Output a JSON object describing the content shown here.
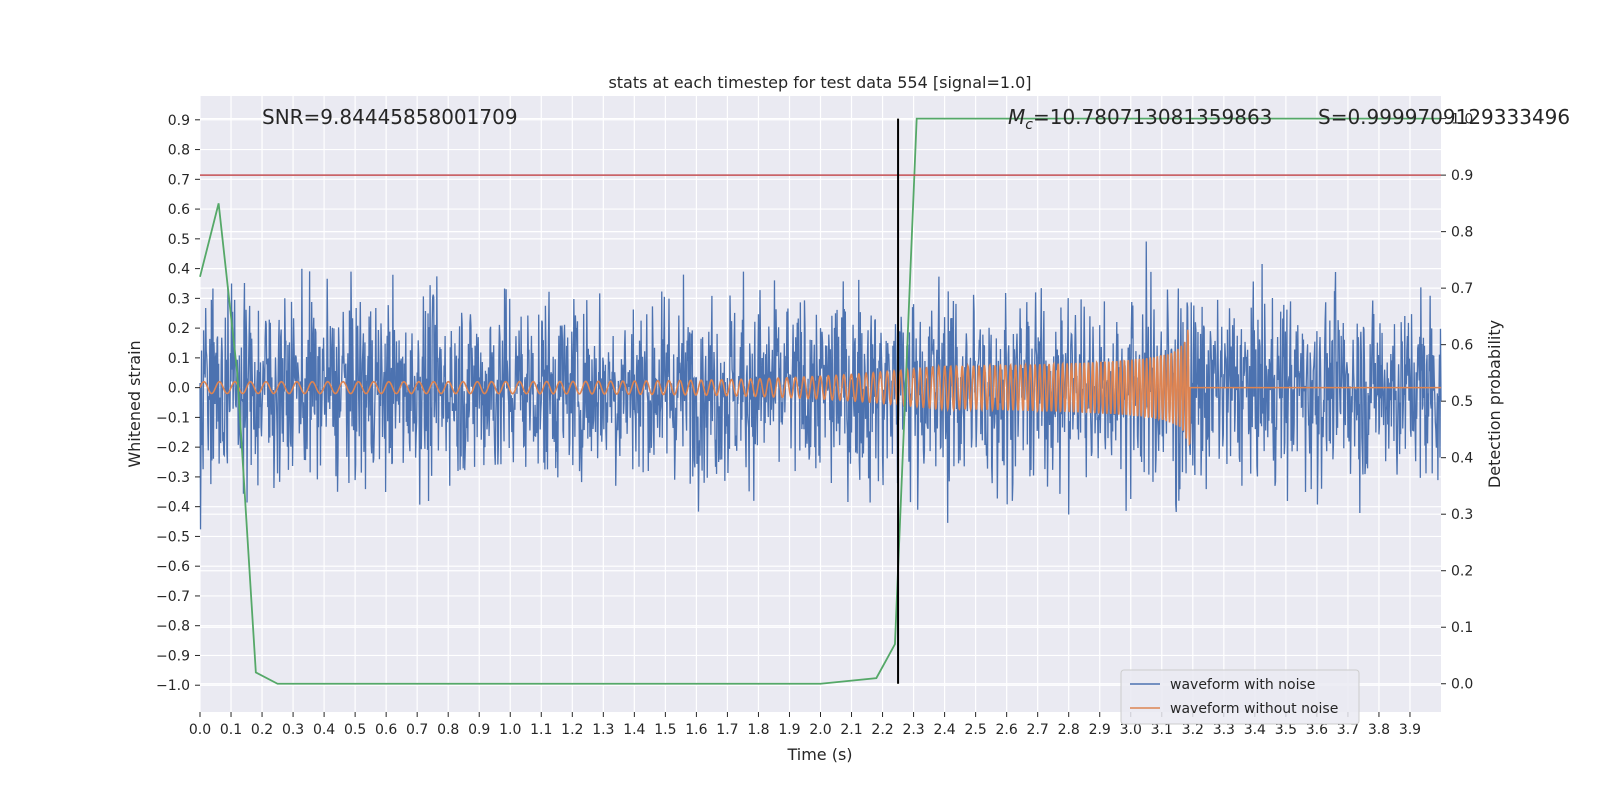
{
  "chart_data": {
    "type": "line",
    "title": "stats at each timestep for test data 554 [signal=1.0]",
    "xlabel": "Time (s)",
    "ylabel": "Whitened strain",
    "y2label": "Detection probability",
    "xlim": [
      0.0,
      4.0
    ],
    "ylim": [
      -1.09,
      0.98
    ],
    "y2lim": [
      -0.05,
      1.04
    ],
    "x_ticks": [
      0.0,
      0.1,
      0.2,
      0.3,
      0.4,
      0.5,
      0.6,
      0.7,
      0.8,
      0.9,
      1.0,
      1.1,
      1.2,
      1.3,
      1.4,
      1.5,
      1.6,
      1.7,
      1.8,
      1.9,
      2.0,
      2.1,
      2.2,
      2.3,
      2.4,
      2.5,
      2.6,
      2.7,
      2.8,
      2.9,
      3.0,
      3.1,
      3.2,
      3.3,
      3.4,
      3.5,
      3.6,
      3.7,
      3.8,
      3.9
    ],
    "x_tick_labels": [
      "0.0",
      "0.1",
      "0.2",
      "0.3",
      "0.4",
      "0.5",
      "0.6",
      "0.7",
      "0.8",
      "0.9",
      "1.0",
      "1.1",
      "1.2",
      "1.3",
      "1.4",
      "1.5",
      "1.6",
      "1.7",
      "1.8",
      "1.9",
      "2.0",
      "2.1",
      "2.2",
      "2.3",
      "2.4",
      "2.5",
      "2.6",
      "2.7",
      "2.8",
      "2.9",
      "3.0",
      "3.1",
      "3.2",
      "3.3",
      "3.4",
      "3.5",
      "3.6",
      "3.7",
      "3.8",
      "3.9"
    ],
    "y_ticks": [
      0.9,
      0.8,
      0.7,
      0.6,
      0.5,
      0.4,
      0.3,
      0.2,
      0.1,
      0.0,
      -0.1,
      -0.2,
      -0.3,
      -0.4,
      -0.5,
      -0.6,
      -0.7,
      -0.8,
      -0.9,
      -1.0
    ],
    "y_tick_labels": [
      "0.9",
      "0.8",
      "0.7",
      "0.6",
      "0.5",
      "0.4",
      "0.3",
      "0.2",
      "0.1",
      "0.0",
      "−0.1",
      "−0.2",
      "−0.3",
      "−0.4",
      "−0.5",
      "−0.6",
      "−0.7",
      "−0.8",
      "−0.9",
      "−1.0"
    ],
    "y2_ticks": [
      1.0,
      0.9,
      0.8,
      0.7,
      0.6,
      0.5,
      0.4,
      0.3,
      0.2,
      0.1,
      0.0
    ],
    "y2_tick_labels": [
      "1.0",
      "0.9",
      "0.8",
      "0.7",
      "0.6",
      "0.5",
      "0.4",
      "0.3",
      "0.2",
      "0.1",
      "0.0"
    ],
    "grid": true,
    "legend": {
      "placement": "lower-right",
      "entries": [
        {
          "name": "waveform with noise",
          "color": "#4c72b0"
        },
        {
          "name": "waveform without noise",
          "color": "#dd8452"
        }
      ]
    },
    "annotations": {
      "snr": "SNR=9.84445858001709",
      "mc_symbol": "M",
      "mc_subscript": "c",
      "mc_value": "=10.780713081359863",
      "s": "S=0.9999709129333496"
    },
    "threshold_line": {
      "axis": "y2",
      "value": 0.9,
      "color": "#c44e52"
    },
    "vertical_line": {
      "x": 2.25,
      "color": "#000000"
    },
    "series": [
      {
        "name": "waveform with noise",
        "axis": "y",
        "color": "#4c72b0",
        "kind": "noise",
        "amplitude_range": [
          -1.0,
          0.9
        ]
      },
      {
        "name": "waveform without noise",
        "axis": "y",
        "color": "#dd8452",
        "kind": "chirp",
        "merger_time": 3.19,
        "peak_amplitude": 0.32
      },
      {
        "name": "detection probability",
        "axis": "y2",
        "color": "#55a868",
        "x": [
          0.0,
          0.06,
          0.12,
          0.18,
          0.25,
          0.5,
          1.0,
          1.5,
          2.0,
          2.18,
          2.24,
          2.31,
          2.37,
          3.0,
          4.0
        ],
        "values": [
          0.72,
          0.85,
          0.55,
          0.02,
          0.0,
          0.0,
          0.0,
          0.0,
          0.0,
          0.01,
          0.07,
          1.0,
          1.0,
          1.0,
          1.0
        ]
      }
    ]
  },
  "colors": {
    "background": "#eaeaf2",
    "grid": "#ffffff",
    "text": "#262626"
  }
}
